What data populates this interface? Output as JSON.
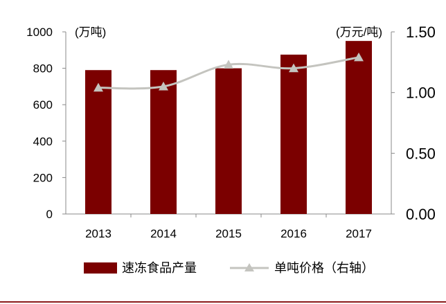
{
  "chart_data": {
    "type": "bar",
    "categories": [
      "2013",
      "2014",
      "2015",
      "2016",
      "2017"
    ],
    "series": [
      {
        "name": "速冻食品产量",
        "type": "bar",
        "axis": "left",
        "values": [
          790,
          790,
          800,
          875,
          950
        ],
        "color": "#7b0000"
      },
      {
        "name": "单吨价格（右轴）",
        "type": "line",
        "axis": "right",
        "values": [
          1.04,
          1.05,
          1.23,
          1.2,
          1.29
        ],
        "color": "#c4c4bf",
        "marker": "triangle"
      }
    ],
    "left_axis": {
      "unit": "(万吨)",
      "ylim": [
        0,
        1000
      ],
      "ticks": [
        "0",
        "200",
        "400",
        "600",
        "800",
        "1000"
      ]
    },
    "right_axis": {
      "unit": "(万元/吨)",
      "ylim": [
        0,
        1.5
      ],
      "ticks": [
        "0.00",
        "0.50",
        "1.00",
        "1.50"
      ]
    },
    "legend_position": "bottom",
    "grid": false
  },
  "colors": {
    "bottom_rule": "#8b1a1a",
    "axis": "#888888"
  }
}
